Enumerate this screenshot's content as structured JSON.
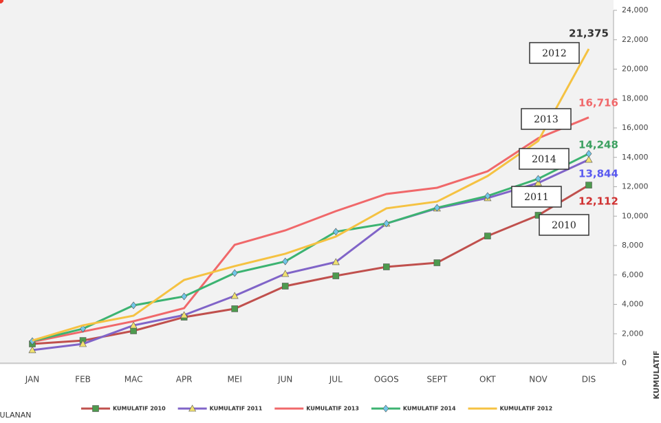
{
  "chart_data": {
    "type": "line",
    "y_label": "KUMULATIF",
    "x_label": "BULANAN",
    "categories": [
      "JAN",
      "FEB",
      "MAC",
      "APR",
      "MEI",
      "JUN",
      "JUL",
      "OGOS",
      "SEPT",
      "OKT",
      "NOV",
      "DIS"
    ],
    "ylim": [
      0,
      24000
    ],
    "yticks": [
      0,
      {
        "value": 2000,
        "label": "2,000"
      },
      {
        "value": 4000,
        "label": "4,000"
      },
      {
        "value": 6000,
        "label": "6,000"
      },
      {
        "value": 8000,
        "label": "8,000"
      },
      {
        "value": 10000,
        "label": "10,000"
      },
      {
        "value": 12000,
        "label": "12,000"
      },
      {
        "value": 14000,
        "label": "14,000"
      },
      {
        "value": 16000,
        "label": "16,000"
      },
      {
        "value": 18000,
        "label": "18,000"
      },
      {
        "value": 20000,
        "label": "20,000"
      },
      {
        "value": 22000,
        "label": "22,000"
      },
      {
        "value": 24000,
        "label": "24,000"
      }
    ],
    "legend": "bottom",
    "series": [
      {
        "name": "KUMULATIF 2010",
        "color": "#c0504d",
        "marker": "square",
        "marker_color": "#4e9a4e",
        "label_color": "#d03030",
        "values": [
          1310,
          1540,
          2200,
          3130,
          3700,
          5240,
          5940,
          6550,
          6830,
          8650,
          10060,
          12112
        ],
        "value_labels": [
          null,
          null,
          null,
          null,
          null,
          null,
          null,
          null,
          null,
          null,
          null,
          "12,112"
        ]
      },
      {
        "name": "KUMULATIF 2011",
        "color": "#8064c8",
        "marker": "triangle",
        "marker_color": "#f0e070",
        "label_color": "#5a5af0",
        "values": [
          890,
          1310,
          2570,
          3270,
          4580,
          6080,
          6880,
          9500,
          10530,
          11230,
          12260,
          13844
        ],
        "value_labels": [
          null,
          null,
          null,
          null,
          null,
          null,
          null,
          null,
          null,
          null,
          null,
          "13,844"
        ]
      },
      {
        "name": "KUMULATIF 2013",
        "color": "#f0686a",
        "marker": "circle",
        "marker_color": "#9060c0",
        "label_color": "#f0686a",
        "values": [
          1450,
          2150,
          2850,
          3740,
          8050,
          9030,
          10340,
          11510,
          11930,
          13050,
          15300,
          16716
        ],
        "value_labels": [
          null,
          null,
          null,
          null,
          null,
          null,
          null,
          null,
          null,
          null,
          null,
          "16,716"
        ]
      },
      {
        "name": "KUMULATIF 2014",
        "color": "#3cb371",
        "marker": "diamond",
        "marker_color": "#70c8e8",
        "label_color": "#3ca060",
        "values": [
          1500,
          2340,
          3930,
          4540,
          6130,
          6920,
          8940,
          9500,
          10570,
          11370,
          12540,
          14248
        ],
        "value_labels": [
          null,
          null,
          null,
          null,
          null,
          null,
          null,
          null,
          null,
          null,
          null,
          "14,248"
        ]
      },
      {
        "name": "KUMULATIF 2012",
        "color": "#f5c242",
        "marker": "circle",
        "marker_color": "#f03a2a",
        "label_color": "#333333",
        "values": [
          1540,
          2570,
          3230,
          5660,
          6600,
          7440,
          8610,
          10530,
          10990,
          12730,
          15110,
          21375
        ],
        "value_labels": [
          null,
          null,
          null,
          null,
          null,
          null,
          null,
          null,
          null,
          null,
          null,
          "21,375"
        ]
      }
    ],
    "annotations": [
      "2012",
      "2013",
      "2014",
      "2011",
      "2010"
    ]
  }
}
